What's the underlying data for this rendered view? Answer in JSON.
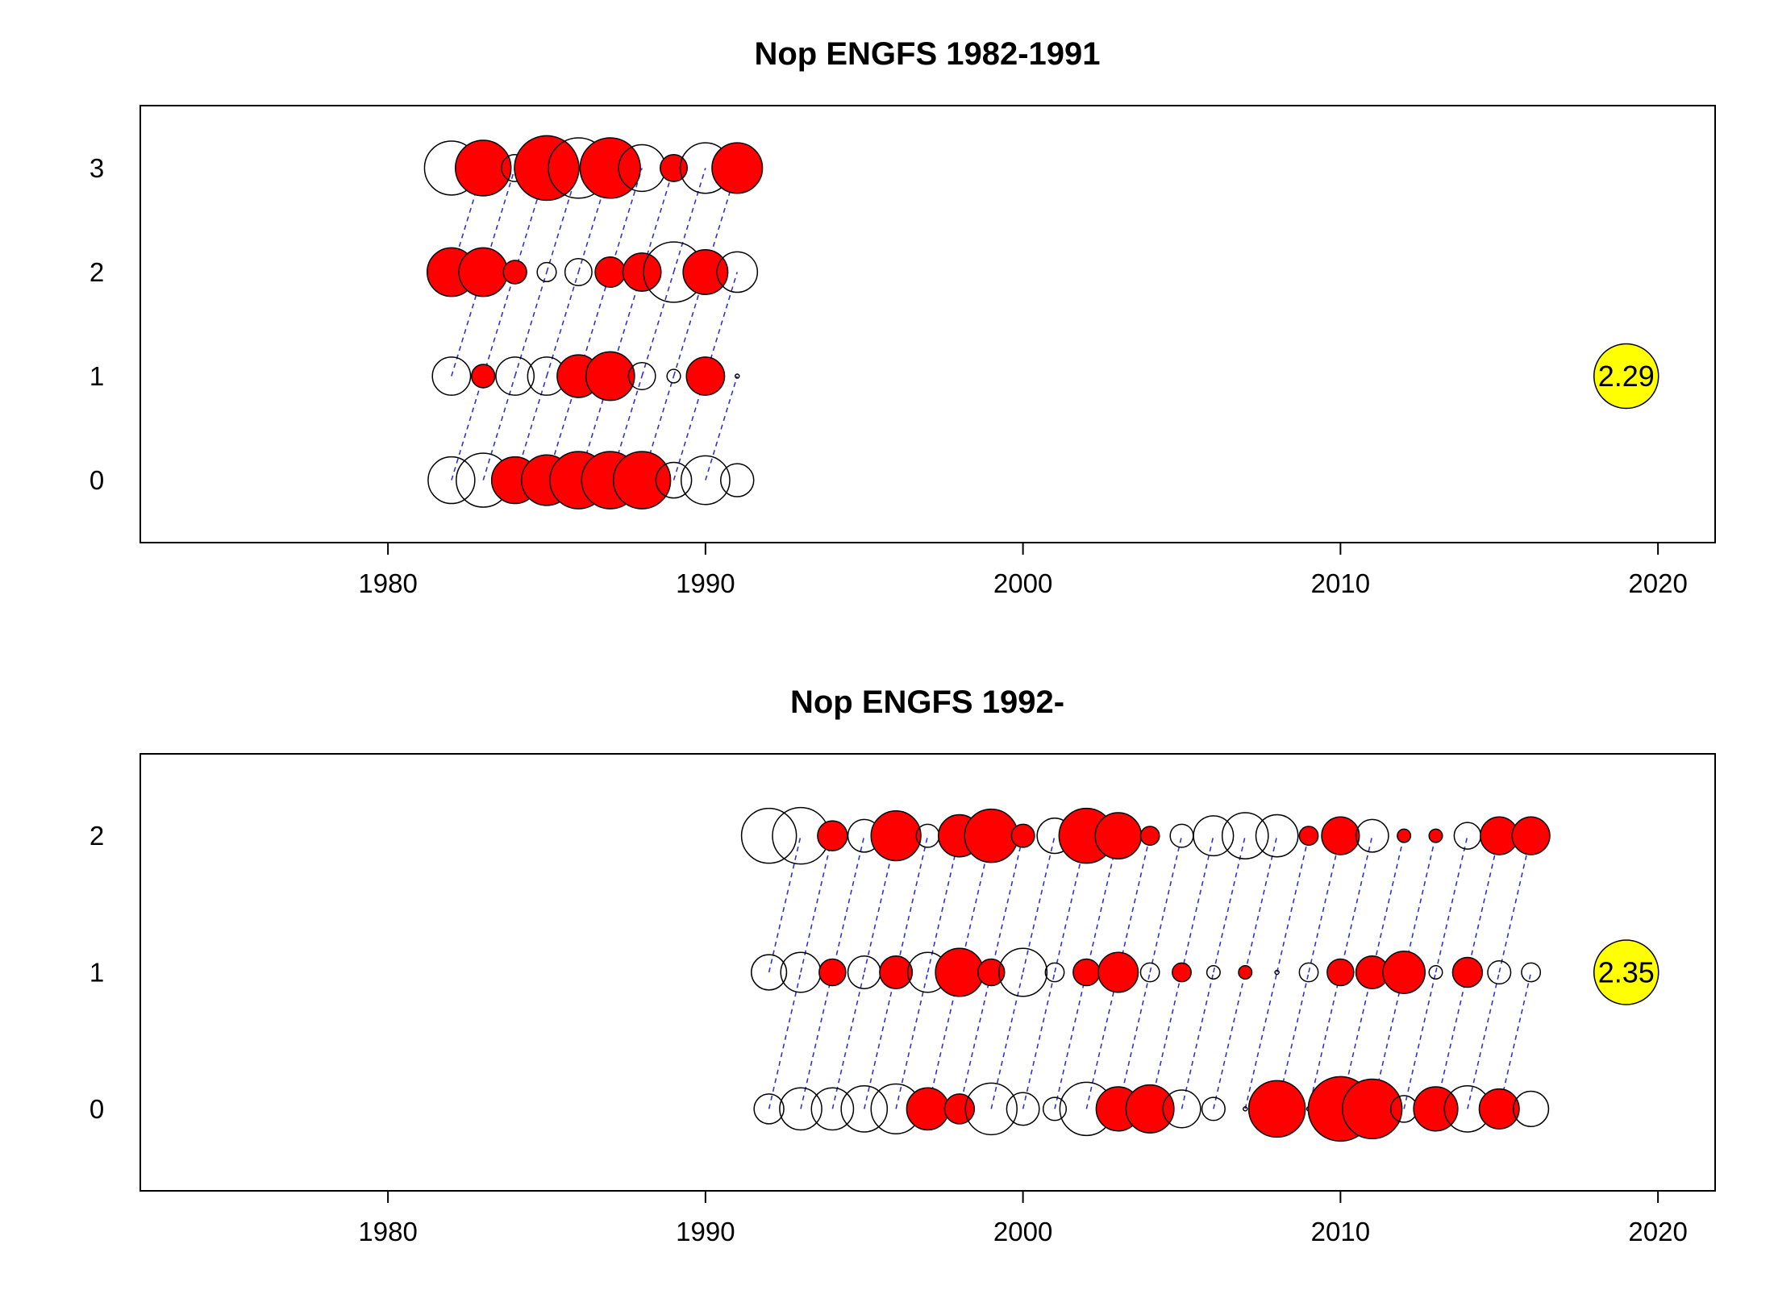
{
  "chart_data": [
    {
      "type": "scatter",
      "subtype": "bubble",
      "title": "Nop ENGFS 1982-1991",
      "xlim": [
        1972.2,
        2021.8
      ],
      "ylim": [
        -0.6,
        3.6
      ],
      "x_ticks": [
        1980,
        1990,
        2000,
        2010,
        2020
      ],
      "y_ticks": [
        0,
        1,
        2,
        3
      ],
      "positive_color": "#ff0000",
      "negative_color": "#ffffff",
      "max_abs_label": "2.29",
      "max_abs_value": 2.29,
      "badge_x": 2019,
      "badge_y": 1,
      "cohort_lines": true,
      "years": [
        1982,
        1983,
        1984,
        1985,
        1986,
        1987,
        1988,
        1989,
        1990,
        1991
      ],
      "ages": [
        0,
        1,
        2,
        3
      ],
      "residuals": [
        [
          -1.2,
          -1.6,
          1.2,
          1.4,
          1.8,
          1.8,
          1.8,
          -0.7,
          -1.3,
          -0.6
        ],
        [
          -0.8,
          0.3,
          -0.8,
          -0.8,
          1.0,
          1.3,
          -0.4,
          -0.1,
          0.8,
          0.0
        ],
        [
          1.3,
          1.3,
          0.3,
          -0.2,
          -0.4,
          0.5,
          0.8,
          -2.0,
          1.1,
          -0.9
        ],
        [
          -1.6,
          1.7,
          -0.4,
          2.29,
          -2.0,
          2.0,
          -1.2,
          0.4,
          -1.4,
          1.4
        ]
      ]
    },
    {
      "type": "scatter",
      "subtype": "bubble",
      "title": "Nop ENGFS 1992-",
      "xlim": [
        1972.2,
        2021.8
      ],
      "ylim": [
        -0.6,
        2.6
      ],
      "x_ticks": [
        1980,
        1990,
        2000,
        2010,
        2020
      ],
      "y_ticks": [
        0,
        1,
        2
      ],
      "positive_color": "#ff0000",
      "negative_color": "#ffffff",
      "max_abs_label": "2.35",
      "max_abs_value": 2.35,
      "badge_x": 2019,
      "badge_y": 1,
      "cohort_lines": true,
      "years": [
        1992,
        1993,
        1994,
        1995,
        1996,
        1997,
        1998,
        1999,
        2000,
        2001,
        2002,
        2003,
        2004,
        2005,
        2006,
        2007,
        2008,
        2009,
        2010,
        2011,
        2012,
        2013,
        2014,
        2015,
        2016
      ],
      "ages": [
        0,
        1,
        2
      ],
      "residuals": [
        [
          -0.5,
          -1.0,
          -1.0,
          -1.2,
          -1.4,
          1.0,
          0.5,
          -1.5,
          -0.6,
          -0.3,
          -1.6,
          1.1,
          1.3,
          -0.8,
          -0.3,
          0.0,
          1.8,
          0.0,
          2.35,
          2.0,
          -0.4,
          1.1,
          -1.2,
          0.9,
          -0.7
        ],
        [
          -0.7,
          -0.9,
          0.4,
          -0.6,
          0.6,
          -0.9,
          1.3,
          0.4,
          -1.3,
          -0.2,
          0.4,
          0.9,
          -0.2,
          0.2,
          -0.1,
          0.1,
          0.0,
          -0.2,
          0.4,
          0.6,
          1.0,
          -0.1,
          0.5,
          -0.3,
          -0.2
        ],
        [
          -1.7,
          -1.8,
          0.5,
          -0.6,
          1.4,
          -0.3,
          1.0,
          1.6,
          0.3,
          -0.7,
          1.7,
          1.2,
          0.2,
          -0.3,
          -0.9,
          -1.2,
          -1.0,
          0.2,
          0.8,
          -0.6,
          0.1,
          0.1,
          -0.4,
          0.8,
          0.8
        ]
      ]
    }
  ]
}
